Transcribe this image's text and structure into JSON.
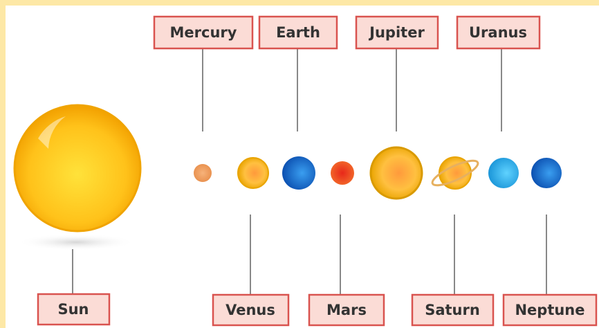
{
  "bodies": [
    {
      "label": "Sun"
    },
    {
      "label": "Mercury"
    },
    {
      "label": "Venus"
    },
    {
      "label": "Earth"
    },
    {
      "label": "Mars"
    },
    {
      "label": "Jupiter"
    },
    {
      "label": "Saturn"
    },
    {
      "label": "Uranus"
    },
    {
      "label": "Neptune"
    }
  ]
}
